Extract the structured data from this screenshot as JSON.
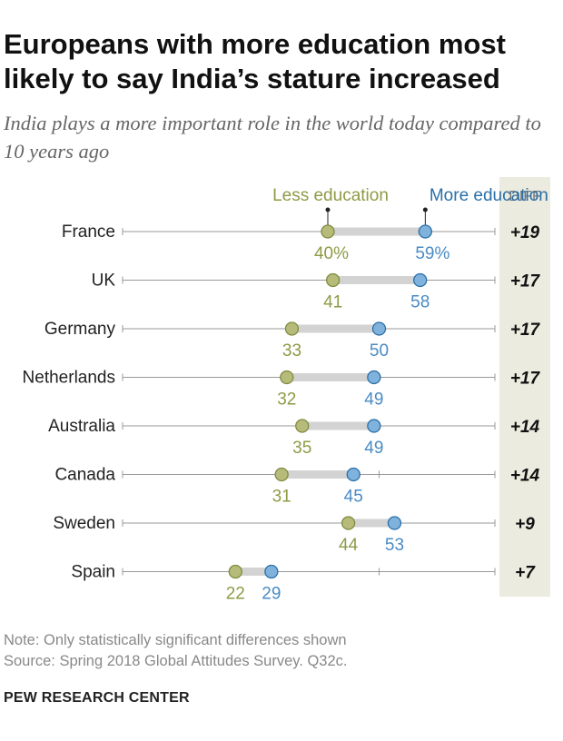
{
  "colors": {
    "less": "#b7bb7a",
    "less_stroke": "#7e8a3e",
    "less_text": "#8f9a45",
    "more": "#7fb2dc",
    "more_stroke": "#2a6fa8",
    "more_text": "#4a8bc4",
    "connector": "#d3d3d3",
    "baseline": "#999999",
    "diff_bg": "#ebebdf"
  },
  "notes": {
    "note": "Note: Only statistically significant differences shown",
    "source": "Source: Spring 2018 Global Attitudes Survey. Q32c."
  },
  "org": "PEW RESEARCH CENTER",
  "chart_data": {
    "type": "dot",
    "title": "Europeans with more education most likely to say India’s stature increased",
    "subtitle": "India plays a more important role in the world today compared to 10 years ago",
    "legend": [
      "Less education",
      "More education"
    ],
    "diff_header": "DIFF",
    "xlim": [
      0,
      100
    ],
    "categories": [
      "France",
      "UK",
      "Germany",
      "Netherlands",
      "Australia",
      "Canada",
      "Sweden",
      "Spain"
    ],
    "series": [
      {
        "name": "Less education",
        "values": [
          40,
          41,
          33,
          32,
          35,
          31,
          44,
          22
        ]
      },
      {
        "name": "More education",
        "values": [
          59,
          58,
          50,
          49,
          49,
          45,
          53,
          29
        ]
      }
    ],
    "value_labels": {
      "less": [
        "40%",
        "41",
        "33",
        "32",
        "35",
        "31",
        "44",
        "22"
      ],
      "more": [
        "59%",
        "58",
        "50",
        "49",
        "49",
        "45",
        "53",
        "29"
      ]
    },
    "diffs": [
      "+19",
      "+17",
      "+17",
      "+17",
      "+14",
      "+14",
      "+9",
      "+7"
    ]
  }
}
